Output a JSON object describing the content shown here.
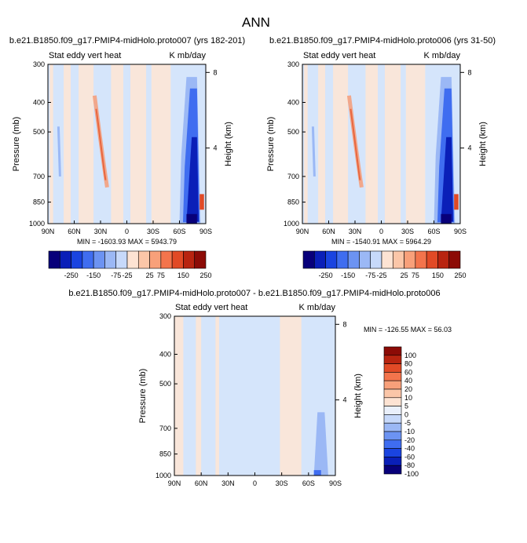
{
  "figure_title": "ANN",
  "chart_data": [
    {
      "type": "heatmap",
      "title": "b.e21.B1850.f09_g17.PMIP4-midHolo.proto007 (yrs 182-201)",
      "subtitle_left": "Stat eddy vert heat",
      "subtitle_right": "K mb/day",
      "xlabel": "",
      "ylabel": "Pressure (mb)",
      "ylabel_right": "Height (km)",
      "x_ticks": [
        "90N",
        "60N",
        "30N",
        "0",
        "30S",
        "60S",
        "90S"
      ],
      "x_values": [
        90,
        60,
        30,
        0,
        -30,
        -60,
        -90
      ],
      "xlim": [
        90,
        -90
      ],
      "y_ticks": [
        "300",
        "400",
        "500",
        "700",
        "850",
        "1000"
      ],
      "y_values": [
        300,
        400,
        500,
        700,
        850,
        1000
      ],
      "ylim": [
        300,
        1000
      ],
      "y_right_ticks": [
        "8",
        "4"
      ],
      "y_right_values": [
        8,
        4
      ],
      "stats": "MIN = -1603.93  MAX = 5943.79",
      "min": -1603.93,
      "max": 5943.79,
      "colorbar_labels": [
        "-250",
        "-150",
        "-75",
        "-25",
        "25",
        "75",
        "150",
        "250"
      ],
      "colorbar_levels": [
        -250,
        -200,
        -150,
        -100,
        -75,
        -50,
        -25,
        0,
        25,
        50,
        75,
        100,
        150,
        200,
        250
      ]
    },
    {
      "type": "heatmap",
      "title": "b.e21.B1850.f09_g17.PMIP4-midHolo.proto006 (yrs 31-50)",
      "subtitle_left": "Stat eddy vert heat",
      "subtitle_right": "K mb/day",
      "xlabel": "",
      "ylabel": "Pressure (mb)",
      "ylabel_right": "Height (km)",
      "x_ticks": [
        "90N",
        "60N",
        "30N",
        "0",
        "30S",
        "60S",
        "90S"
      ],
      "x_values": [
        90,
        60,
        30,
        0,
        -30,
        -60,
        -90
      ],
      "xlim": [
        90,
        -90
      ],
      "y_ticks": [
        "300",
        "400",
        "500",
        "700",
        "850",
        "1000"
      ],
      "y_values": [
        300,
        400,
        500,
        700,
        850,
        1000
      ],
      "ylim": [
        300,
        1000
      ],
      "y_right_ticks": [
        "8",
        "4"
      ],
      "y_right_values": [
        8,
        4
      ],
      "stats": "MIN = -1540.91  MAX = 5964.29",
      "min": -1540.91,
      "max": 5964.29,
      "colorbar_labels": [
        "-250",
        "-150",
        "-75",
        "-25",
        "25",
        "75",
        "150",
        "250"
      ],
      "colorbar_levels": [
        -250,
        -200,
        -150,
        -100,
        -75,
        -50,
        -25,
        0,
        25,
        50,
        75,
        100,
        150,
        200,
        250
      ]
    },
    {
      "type": "heatmap",
      "title": "b.e21.B1850.f09_g17.PMIP4-midHolo.proto007 - b.e21.B1850.f09_g17.PMIP4-midHolo.proto006",
      "subtitle_left": "Stat eddy vert heat",
      "subtitle_right": "K mb/day",
      "xlabel": "",
      "ylabel": "Pressure (mb)",
      "ylabel_right": "Height (km)",
      "x_ticks": [
        "90N",
        "60N",
        "30N",
        "0",
        "30S",
        "60S",
        "90S"
      ],
      "x_values": [
        90,
        60,
        30,
        0,
        -30,
        -60,
        -90
      ],
      "xlim": [
        90,
        -90
      ],
      "y_ticks": [
        "300",
        "400",
        "500",
        "700",
        "850",
        "1000"
      ],
      "y_values": [
        300,
        400,
        500,
        700,
        850,
        1000
      ],
      "ylim": [
        300,
        1000
      ],
      "y_right_ticks": [
        "8",
        "4"
      ],
      "y_right_values": [
        8,
        4
      ],
      "stats": "MIN = -126.55  MAX =  56.03",
      "min": -126.55,
      "max": 56.03,
      "colorbar_labels": [
        "100",
        "80",
        "60",
        "40",
        "20",
        "10",
        "5",
        "0",
        "-5",
        "-10",
        "-20",
        "-40",
        "-60",
        "-80",
        "-100"
      ],
      "colorbar_levels": [
        100,
        80,
        60,
        40,
        20,
        10,
        5,
        0,
        -5,
        -10,
        -20,
        -40,
        -60,
        -80,
        -100
      ]
    }
  ],
  "colors": {
    "neg": [
      "#08007a",
      "#0a1fb8",
      "#1a44e0",
      "#3f6df0",
      "#6c93f2",
      "#9bb8f5",
      "#c7d9fa"
    ],
    "zero": "#eaf0fb",
    "pos": [
      "#fde3d3",
      "#fbc6a8",
      "#f8a07a",
      "#f3744c",
      "#e14a26",
      "#b82410",
      "#8c0b06"
    ],
    "field_neg": "#d5e5fb",
    "field_pos": "#fde5d6"
  }
}
